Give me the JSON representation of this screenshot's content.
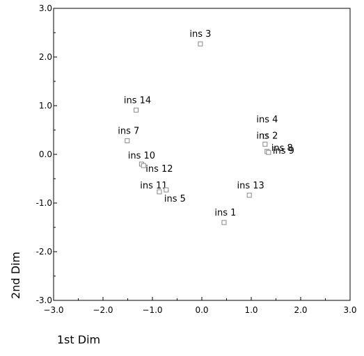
{
  "chart_data": {
    "type": "scatter",
    "title": "",
    "xlabel": "1st Dim",
    "ylabel": "2nd Dim",
    "xlim": [
      -3.0,
      3.0
    ],
    "ylim": [
      -3.0,
      3.0
    ],
    "x_ticks": [
      -3.0,
      -2.0,
      -1.0,
      0.0,
      1.0,
      2.0,
      3.0
    ],
    "y_ticks": [
      -3.0,
      -2.0,
      -1.0,
      0.0,
      1.0,
      2.0,
      3.0
    ],
    "x_tick_labels": [
      "−3.0",
      "−2.0",
      "−1.0",
      "0.0",
      "1.0",
      "2.0",
      "3.0"
    ],
    "y_tick_labels": [
      "-3.0",
      "-2.0",
      "-1.0",
      "0.0",
      "1.0",
      "2.0",
      "3.0"
    ],
    "grid": false,
    "legend": "none",
    "marker": "open-square",
    "marker_color": "#888888",
    "points": [
      {
        "label": "ins 3",
        "x": -0.03,
        "y": 2.27
      },
      {
        "label": "ins 14",
        "x": -1.33,
        "y": 0.91
      },
      {
        "label": "ins 7",
        "x": -1.51,
        "y": 0.28
      },
      {
        "label": "ins 10",
        "x": -1.22,
        "y": -0.2
      },
      {
        "label": "ins 12",
        "x": -1.18,
        "y": -0.23
      },
      {
        "label": "ins 11",
        "x": -0.86,
        "y": -0.77
      },
      {
        "label": "ins 5",
        "x": -0.72,
        "y": -0.73
      },
      {
        "label": "ins 4",
        "x": 1.28,
        "y": 0.37
      },
      {
        "label": "ins 2",
        "x": 1.28,
        "y": 0.21
      },
      {
        "label": "ins 8",
        "x": 1.32,
        "y": 0.06
      },
      {
        "label": "ins 9",
        "x": 1.35,
        "y": 0.04
      },
      {
        "label": "ins 13",
        "x": 0.96,
        "y": -0.84
      },
      {
        "label": "ins 1",
        "x": 0.45,
        "y": -1.4
      }
    ]
  }
}
